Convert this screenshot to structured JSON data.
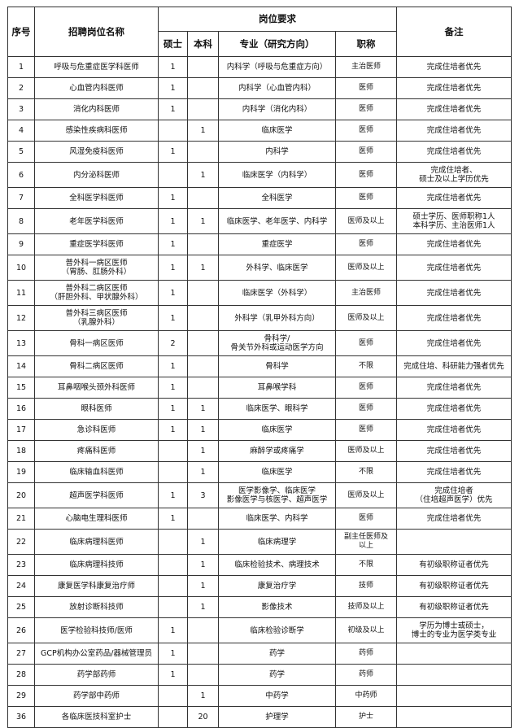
{
  "header": {
    "no": "序号",
    "position": "招聘岗位名称",
    "requirements": "岗位要求",
    "master": "硕士",
    "bachelor": "本科",
    "major": "专业（研究方向）",
    "title": "职称",
    "remarks": "备注"
  },
  "rows": [
    {
      "no": "1",
      "position": "呼吸与危重症医学科医师",
      "master": "1",
      "bachelor": "",
      "major": "内科学（呼吸与危重症方向）",
      "title": "主治医师",
      "remarks": "完成住培者优先"
    },
    {
      "no": "2",
      "position": "心血管内科医师",
      "master": "1",
      "bachelor": "",
      "major": "内科学（心血管内科）",
      "title": "医师",
      "remarks": "完成住培者优先"
    },
    {
      "no": "3",
      "position": "消化内科医师",
      "master": "1",
      "bachelor": "",
      "major": "内科学（消化内科）",
      "title": "医师",
      "remarks": "完成住培者优先"
    },
    {
      "no": "4",
      "position": "感染性疾病科医师",
      "master": "",
      "bachelor": "1",
      "major": "临床医学",
      "title": "医师",
      "remarks": "完成住培者优先"
    },
    {
      "no": "5",
      "position": "风湿免疫科医师",
      "master": "1",
      "bachelor": "",
      "major": "内科学",
      "title": "医师",
      "remarks": "完成住培者优先"
    },
    {
      "no": "6",
      "position": "内分泌科医师",
      "master": "",
      "bachelor": "1",
      "major": "临床医学（内科学）",
      "title": "医师",
      "remarks": "完成住培者、\n硕士及以上学历优先"
    },
    {
      "no": "7",
      "position": "全科医学科医师",
      "master": "1",
      "bachelor": "",
      "major": "全科医学",
      "title": "医师",
      "remarks": "完成住培者优先"
    },
    {
      "no": "8",
      "position": "老年医学科医师",
      "master": "1",
      "bachelor": "1",
      "major": "临床医学、老年医学、内科学",
      "title": "医师及以上",
      "remarks": "硕士学历、医师职称1人\n本科学历、主治医师1人"
    },
    {
      "no": "9",
      "position": "重症医学科医师",
      "master": "1",
      "bachelor": "",
      "major": "重症医学",
      "title": "医师",
      "remarks": "完成住培者优先"
    },
    {
      "no": "10",
      "position": "普外科一病区医师\n（胃肠、肛肠外科）",
      "master": "1",
      "bachelor": "1",
      "major": "外科学、临床医学",
      "title": "医师及以上",
      "remarks": "完成住培者优先"
    },
    {
      "no": "11",
      "position": "普外科二病区医师\n（肝胆外科、甲状腺外科）",
      "master": "1",
      "bachelor": "",
      "major": "临床医学（外科学）",
      "title": "主治医师",
      "remarks": "完成住培者优先"
    },
    {
      "no": "12",
      "position": "普外科三病区医师\n（乳腺外科）",
      "master": "1",
      "bachelor": "",
      "major": "外科学（乳甲外科方向）",
      "title": "医师及以上",
      "remarks": "完成住培者优先"
    },
    {
      "no": "13",
      "position": "骨科一病区医师",
      "master": "2",
      "bachelor": "",
      "major": "骨科学/\n骨关节外科或运动医学方向",
      "title": "医师",
      "remarks": "完成住培者优先"
    },
    {
      "no": "14",
      "position": "骨科二病区医师",
      "master": "1",
      "bachelor": "",
      "major": "骨科学",
      "title": "不限",
      "remarks": "完成住培、科研能力强者优先"
    },
    {
      "no": "15",
      "position": "耳鼻咽喉头颈外科医师",
      "master": "1",
      "bachelor": "",
      "major": "耳鼻喉学科",
      "title": "医师",
      "remarks": "完成住培者优先"
    },
    {
      "no": "16",
      "position": "眼科医师",
      "master": "1",
      "bachelor": "1",
      "major": "临床医学、眼科学",
      "title": "医师",
      "remarks": "完成住培者优先"
    },
    {
      "no": "17",
      "position": "急诊科医师",
      "master": "1",
      "bachelor": "1",
      "major": "临床医学",
      "title": "医师",
      "remarks": "完成住培者优先"
    },
    {
      "no": "18",
      "position": "疼痛科医师",
      "master": "",
      "bachelor": "1",
      "major": "麻醉学或疼痛学",
      "title": "医师及以上",
      "remarks": "完成住培者优先"
    },
    {
      "no": "19",
      "position": "临床输血科医师",
      "master": "",
      "bachelor": "1",
      "major": "临床医学",
      "title": "不限",
      "remarks": "完成住培者优先"
    },
    {
      "no": "20",
      "position": "超声医学科医师",
      "master": "1",
      "bachelor": "3",
      "major": "医学影像学、临床医学\n影像医学与核医学、超声医学",
      "title": "医师及以上",
      "remarks": "完成住培者\n（住培超声医学）优先"
    },
    {
      "no": "21",
      "position": "心脑电生理科医师",
      "master": "1",
      "bachelor": "",
      "major": "临床医学、内科学",
      "title": "医师",
      "remarks": "完成住培者优先"
    },
    {
      "no": "22",
      "position": "临床病理科医师",
      "master": "",
      "bachelor": "1",
      "major": "临床病理学",
      "title": "副主任医师及\n以上",
      "remarks": ""
    },
    {
      "no": "23",
      "position": "临床病理科技师",
      "master": "",
      "bachelor": "1",
      "major": "临床检验技术、病理技术",
      "title": "不限",
      "remarks": "有初级职称证者优先"
    },
    {
      "no": "24",
      "position": "康复医学科康复治疗师",
      "master": "",
      "bachelor": "1",
      "major": "康复治疗学",
      "title": "技师",
      "remarks": "有初级职称证者优先"
    },
    {
      "no": "25",
      "position": "放射诊断科技师",
      "master": "",
      "bachelor": "1",
      "major": "影像技术",
      "title": "技师及以上",
      "remarks": "有初级职称证者优先"
    },
    {
      "no": "26",
      "position": "医学检验科技师/医师",
      "master": "1",
      "bachelor": "",
      "major": "临床检验诊断学",
      "title": "初级及以上",
      "remarks": "学历为博士或硕士，\n博士的专业为医学类专业"
    },
    {
      "no": "27",
      "position": "GCP机构办公室药品/器械管理员",
      "master": "1",
      "bachelor": "",
      "major": "药学",
      "title": "药师",
      "remarks": ""
    },
    {
      "no": "28",
      "position": "药学部药师",
      "master": "1",
      "bachelor": "",
      "major": "药学",
      "title": "药师",
      "remarks": ""
    },
    {
      "no": "29",
      "position": "药学部中药师",
      "master": "",
      "bachelor": "1",
      "major": "中药学",
      "title": "中药师",
      "remarks": ""
    },
    {
      "no": "36",
      "position": "各临床医技科室护士",
      "master": "",
      "bachelor": "20",
      "major": "护理学",
      "title": "护士",
      "remarks": ""
    }
  ]
}
